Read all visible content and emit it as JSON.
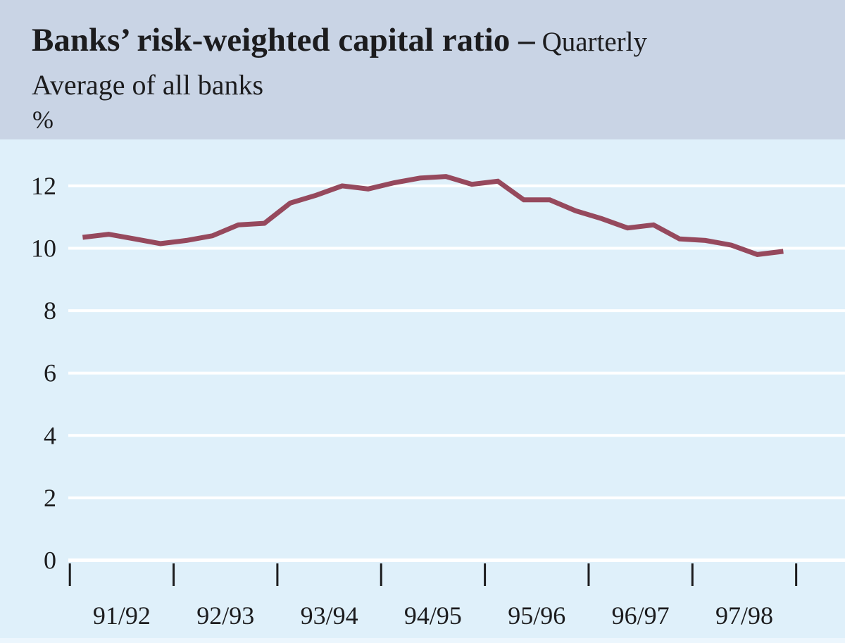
{
  "header": {
    "title": "Banks’ risk-weighted capital ratio –",
    "frequency": "Quarterly",
    "subtitle": "Average of all banks",
    "unit": "%"
  },
  "colors": {
    "header_bg": "#c9d4e5",
    "chart_bg": "#dff0fa",
    "gridline": "#ffffff",
    "line": "#96495d",
    "text": "#1c1c1e",
    "tick": "#1c1c1e"
  },
  "chart_data": {
    "type": "line",
    "title": "Banks’ risk-weighted capital ratio – Quarterly",
    "subtitle": "Average of all banks",
    "ylabel": "%",
    "xlabel": "",
    "grid": true,
    "legend": "none",
    "ylim": [
      0,
      13.5
    ],
    "yticks": [
      0,
      2,
      4,
      6,
      8,
      10,
      12
    ],
    "x_tick_labels": [
      "91/92",
      "92/93",
      "93/94",
      "94/95",
      "95/96",
      "96/97",
      "97/98"
    ],
    "x_unit": "fiscal year, 4 quarterly observations per labelled year",
    "series": [
      {
        "name": "Average risk-weighted capital ratio of all banks (%)",
        "values": [
          10.35,
          10.45,
          10.3,
          10.15,
          10.25,
          10.4,
          10.75,
          10.8,
          11.45,
          11.7,
          12.0,
          11.9,
          12.1,
          12.25,
          12.3,
          12.05,
          12.15,
          11.55,
          11.55,
          11.2,
          10.95,
          10.65,
          10.75,
          10.3,
          10.25,
          10.1,
          9.8,
          9.9
        ]
      }
    ]
  }
}
